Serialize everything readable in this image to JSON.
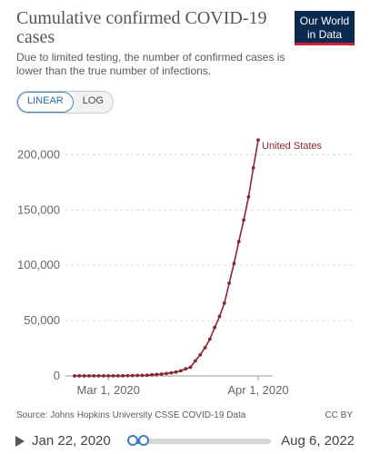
{
  "header": {
    "title": "Cumulative confirmed COVID-19 cases",
    "subtitle": "Due to limited testing, the number of confirmed cases is lower than the true number of infections.",
    "logo_line1": "Our World",
    "logo_line2": "in Data"
  },
  "scale_toggle": {
    "linear_label": "LINEAR",
    "log_label": "LOG",
    "selected": "LINEAR"
  },
  "footer": {
    "source": "Source: Johns Hopkins University CSSE COVID-19 Data",
    "license": "CC BY"
  },
  "timeline": {
    "start_label": "Jan 22, 2020",
    "end_label": "Aug 6, 2022",
    "selected_start": 0.0,
    "selected_end": 0.08
  },
  "colors": {
    "series": "#8b2533",
    "grid": "#dddddd",
    "accent": "#3b7fc0"
  },
  "chart_data": {
    "type": "line",
    "title": "",
    "xlabel": "",
    "ylabel": "",
    "ylim": [
      0,
      225000
    ],
    "y_ticks": [
      0,
      50000,
      100000,
      150000,
      200000
    ],
    "y_tick_labels": [
      "0",
      "50,000",
      "100,000",
      "150,000",
      "200,000"
    ],
    "x_tick_labels": [
      "Mar 1, 2020",
      "Apr 1, 2020"
    ],
    "x_tick_dates": [
      "2020-03-01",
      "2020-04-01"
    ],
    "grid": "horizontal dashed",
    "legend": "label at line end",
    "series": [
      {
        "name": "United States",
        "x": [
          "2020-02-23",
          "2020-02-24",
          "2020-02-25",
          "2020-02-26",
          "2020-02-27",
          "2020-02-28",
          "2020-02-29",
          "2020-03-01",
          "2020-03-02",
          "2020-03-03",
          "2020-03-04",
          "2020-03-05",
          "2020-03-06",
          "2020-03-07",
          "2020-03-08",
          "2020-03-09",
          "2020-03-10",
          "2020-03-11",
          "2020-03-12",
          "2020-03-13",
          "2020-03-14",
          "2020-03-15",
          "2020-03-16",
          "2020-03-17",
          "2020-03-18",
          "2020-03-19",
          "2020-03-20",
          "2020-03-21",
          "2020-03-22",
          "2020-03-23",
          "2020-03-24",
          "2020-03-25",
          "2020-03-26",
          "2020-03-27",
          "2020-03-28",
          "2020-03-29",
          "2020-03-30",
          "2020-03-31",
          "2020-04-01"
        ],
        "values": [
          15,
          51,
          51,
          57,
          58,
          60,
          68,
          74,
          98,
          118,
          149,
          217,
          262,
          402,
          518,
          583,
          959,
          1281,
          1663,
          2179,
          2727,
          3499,
          4632,
          6421,
          7786,
          13680,
          19101,
          25493,
          33276,
          43847,
          53740,
          65778,
          83836,
          101657,
          121465,
          140909,
          161831,
          188172,
          213372
        ]
      }
    ]
  }
}
